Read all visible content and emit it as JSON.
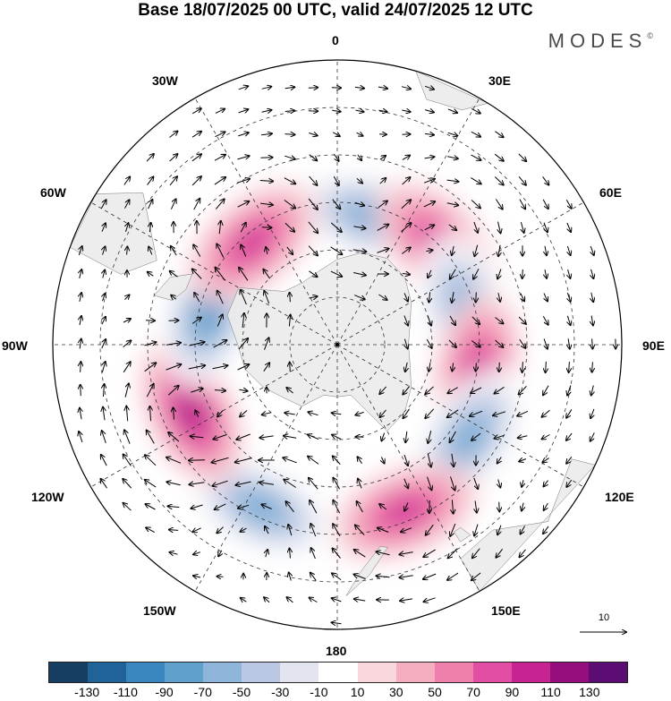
{
  "title": "Base 18/07/2025 00 UTC, valid 24/07/2025 12 UTC",
  "brand": "MODES",
  "brand_mark": "©",
  "longitude_labels": {
    "n0": "0",
    "e30": "30E",
    "e60": "60E",
    "e90": "90E",
    "e120": "120E",
    "e150": "150E",
    "s180": "180",
    "w150": "150W",
    "w120": "120W",
    "w90": "90W",
    "w60": "60W",
    "w30": "30W"
  },
  "reference_vector": {
    "value": "10"
  },
  "colorbar": {
    "colors": [
      "#163e63",
      "#1f6398",
      "#3a86bf",
      "#5fa0cd",
      "#8fb5da",
      "#bac8e3",
      "#e2e4f0",
      "#ffffff",
      "#f8d8dc",
      "#f5aec0",
      "#ef7fab",
      "#e14ea3",
      "#c72391",
      "#960e7e",
      "#5c0d74"
    ],
    "tick_labels": [
      "-130",
      "-110",
      "-90",
      "-70",
      "-50",
      "-30",
      "-10",
      "10",
      "30",
      "50",
      "70",
      "90",
      "110",
      "130"
    ]
  },
  "map": {
    "background": "#ffffff",
    "land_color": "#ebebeb",
    "anomaly_centers": [
      {
        "lon": 15,
        "lat": -62,
        "value": -70
      },
      {
        "lon": 45,
        "lat": -60,
        "value": 70
      },
      {
        "lon": 75,
        "lat": -62,
        "value": -70
      },
      {
        "lon": 100,
        "lat": -60,
        "value": 70
      },
      {
        "lon": 125,
        "lat": -56,
        "value": -70
      },
      {
        "lon": 158,
        "lat": -52,
        "value": 70
      },
      {
        "lon": -155,
        "lat": -52,
        "value": -70
      },
      {
        "lon": -115,
        "lat": -56,
        "value": 90
      },
      {
        "lon": -75,
        "lat": -62,
        "value": -90
      },
      {
        "lon": -40,
        "lat": -62,
        "value": 70
      }
    ]
  }
}
